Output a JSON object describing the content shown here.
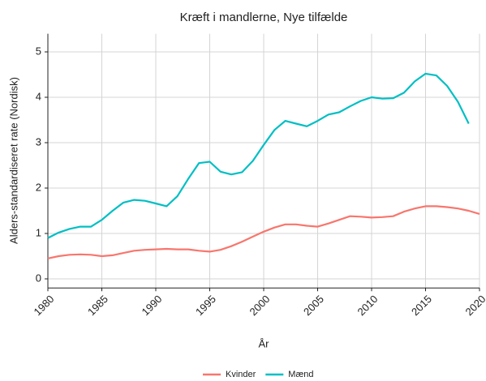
{
  "chart_data": {
    "type": "line",
    "title": "Kræft i mandlerne, Nye tilfælde",
    "x_label": "År",
    "y_label": "Alders-standardiseret rate (Nordisk)",
    "x": [
      1980,
      1981,
      1982,
      1983,
      1984,
      1985,
      1986,
      1987,
      1988,
      1989,
      1990,
      1991,
      1992,
      1993,
      1994,
      1995,
      1996,
      1997,
      1998,
      1999,
      2000,
      2001,
      2002,
      2003,
      2004,
      2005,
      2006,
      2007,
      2008,
      2009,
      2010,
      2011,
      2012,
      2013,
      2014,
      2015,
      2016,
      2017,
      2018,
      2019,
      2020
    ],
    "series": [
      {
        "name": "Kvinder",
        "color": "#F8766D",
        "values": [
          0.45,
          0.5,
          0.53,
          0.54,
          0.53,
          0.5,
          0.52,
          0.57,
          0.62,
          0.64,
          0.65,
          0.66,
          0.65,
          0.65,
          0.62,
          0.6,
          0.64,
          0.72,
          0.82,
          0.93,
          1.04,
          1.13,
          1.2,
          1.2,
          1.17,
          1.15,
          1.22,
          1.3,
          1.38,
          1.37,
          1.35,
          1.36,
          1.38,
          1.48,
          1.55,
          1.6,
          1.6,
          1.58,
          1.55,
          1.5,
          1.43
        ]
      },
      {
        "name": "Mænd",
        "color": "#00BFC4",
        "values": [
          0.9,
          1.02,
          1.1,
          1.15,
          1.15,
          1.3,
          1.5,
          1.68,
          1.74,
          1.72,
          1.66,
          1.6,
          1.82,
          2.2,
          2.55,
          2.58,
          2.36,
          2.3,
          2.35,
          2.6,
          2.95,
          3.28,
          3.48,
          3.42,
          3.36,
          3.48,
          3.62,
          3.67,
          3.8,
          3.92,
          4.0,
          3.97,
          3.98,
          4.1,
          4.35,
          4.52,
          4.48,
          4.25,
          3.9,
          3.42,
          null
        ]
      }
    ],
    "xlim": [
      1980,
      2020
    ],
    "xticks": [
      1980,
      1985,
      1990,
      1995,
      2000,
      2005,
      2010,
      2015,
      2020
    ],
    "ylim": [
      -0.2,
      5.4
    ],
    "yticks": [
      0,
      1,
      2,
      3,
      4,
      5
    ],
    "grid": true,
    "legend": "bottom"
  }
}
